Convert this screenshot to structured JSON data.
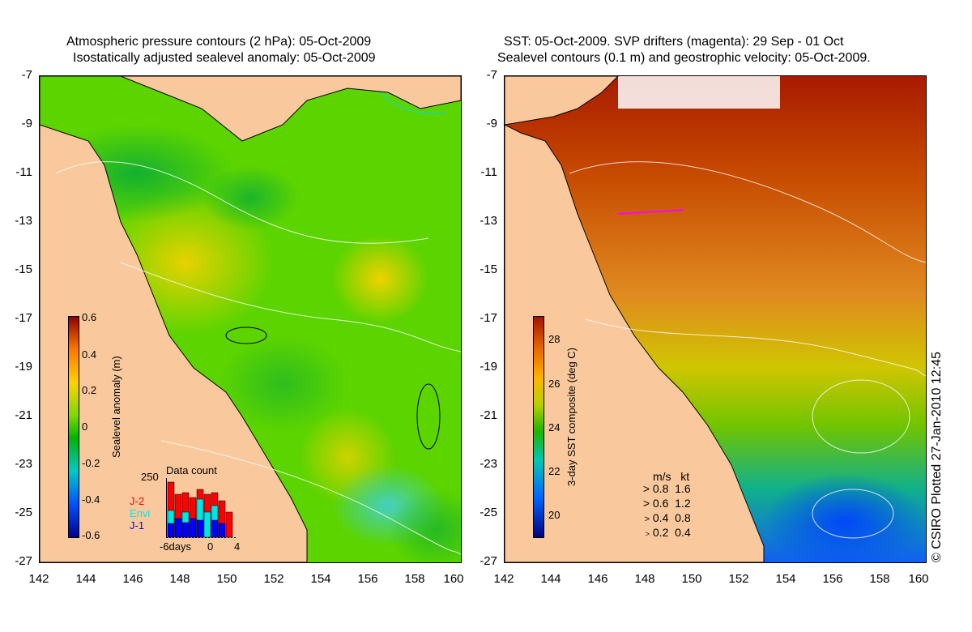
{
  "left_panel": {
    "title_line1": "Atmospheric pressure contours (2 hPa): 05-Oct-2009",
    "title_line2": "Isostatically adjusted sealevel anomaly: 05-Oct-2009",
    "colorbar_label": "Sealevel anomaly (m)",
    "colorbar_ticks": [
      "0.6",
      "0.4",
      "0.2",
      "0",
      "-0.2",
      "-0.4",
      "-0.6"
    ],
    "inset": {
      "title": "Data count",
      "ymax_label": "250",
      "satellites": [
        {
          "name": "J-2",
          "color": "#ff0000"
        },
        {
          "name": "Envi",
          "color": "#00e5e5"
        },
        {
          "name": "J-1",
          "color": "#0000ff"
        }
      ],
      "xticks": [
        "-6days",
        "0",
        "4"
      ]
    }
  },
  "right_panel": {
    "title_line1": "SST: 05-Oct-2009. SVP drifters (magenta): 29 Sep - 01 Oct",
    "title_line2": "Sealevel contours (0.1 m) and geostrophic velocity: 05-Oct-2009.",
    "colorbar_label": "3-day SST composite (deg C)",
    "colorbar_ticks": [
      "28",
      "26",
      "24",
      "22",
      "20"
    ],
    "velocity_legend": {
      "header": [
        "m/s",
        "kt"
      ],
      "rows": [
        [
          "0.8",
          "1.6"
        ],
        [
          "0.6",
          "1.2"
        ],
        [
          "0.4",
          "0.8"
        ],
        [
          "0.2",
          "0.4"
        ]
      ]
    }
  },
  "axes": {
    "y_ticks": [
      "-7",
      "-9",
      "-11",
      "-13",
      "-15",
      "-17",
      "-19",
      "-21",
      "-23",
      "-25",
      "-27"
    ],
    "x_ticks": [
      "142",
      "144",
      "146",
      "148",
      "150",
      "152",
      "154",
      "156",
      "158",
      "160"
    ]
  },
  "credit": "© CSIRO Plotted 27-Jan-2010 12:45",
  "colors": {
    "land": "#f9c99d",
    "anomaly_scale": [
      "#00008b",
      "#0050ff",
      "#00c8c8",
      "#00c800",
      "#b4e600",
      "#ffd200",
      "#ff7800",
      "#b40000"
    ],
    "sst_scale": [
      "#000080",
      "#0064ff",
      "#00c8b4",
      "#1eb400",
      "#b4d200",
      "#ffb400",
      "#e66400",
      "#a01400"
    ]
  }
}
